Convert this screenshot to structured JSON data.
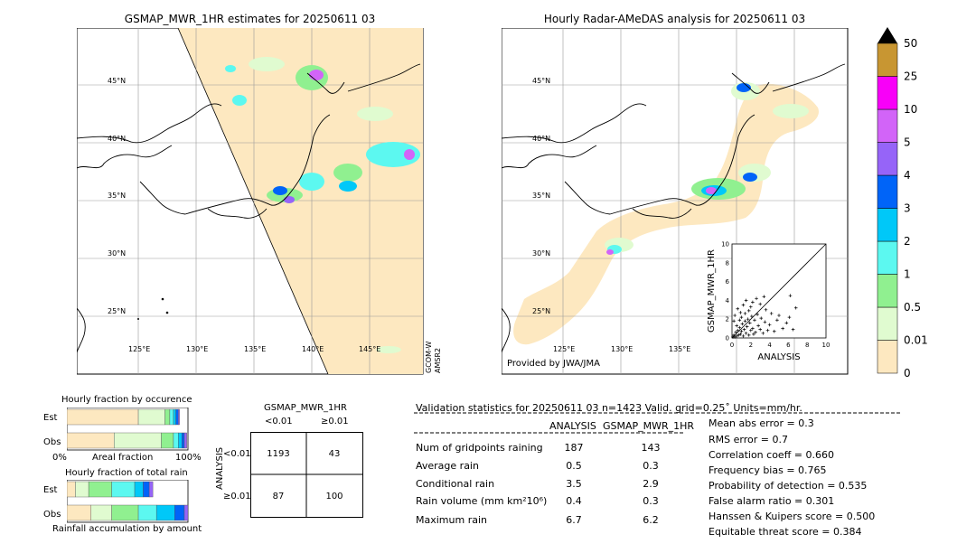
{
  "map_left": {
    "title": "GSMAP_MWR_1HR estimates for 20250611 03",
    "lat_labels": [
      "45°N",
      "40°N",
      "35°N",
      "30°N",
      "25°N"
    ],
    "lon_labels": [
      "125°E",
      "130°E",
      "135°E",
      "140°E",
      "145°E"
    ],
    "side_label_1": "GCOM-W",
    "side_label_2": "AMSR2"
  },
  "map_right": {
    "title": "Hourly Radar-AMeDAS analysis for 20250611 03",
    "lat_labels": [
      "45°N",
      "40°N",
      "35°N",
      "30°N",
      "25°N"
    ],
    "lon_labels": [
      "125°E",
      "130°E",
      "135°E"
    ],
    "provider": "Provided by JWA/JMA"
  },
  "colorbar": {
    "levels": [
      "0",
      "0.01",
      "0.5",
      "1",
      "2",
      "3",
      "4",
      "5",
      "10",
      "25",
      "50"
    ],
    "colors": [
      "#fde8c0",
      "#e0fbd0",
      "#90f090",
      "#5cf8f0",
      "#00c8f8",
      "#0064f8",
      "#9664f8",
      "#d264f8",
      "#f800f8",
      "#c89632"
    ]
  },
  "scatter": {
    "xlabel": "ANALYSIS",
    "ylabel": "GSMAP_MWR_1HR",
    "ticks": [
      "0",
      "2",
      "4",
      "6",
      "8",
      "10"
    ],
    "ytick_top": "10"
  },
  "chart_data": {
    "type": "scatter",
    "xlabel": "ANALYSIS",
    "ylabel": "GSMAP_MWR_1HR",
    "xlim": [
      0,
      10
    ],
    "ylim": [
      0,
      10
    ],
    "points": [
      [
        0.1,
        0.1
      ],
      [
        0.2,
        0.3
      ],
      [
        0.3,
        0.1
      ],
      [
        0.4,
        0.6
      ],
      [
        0.5,
        0.2
      ],
      [
        0.6,
        0.8
      ],
      [
        0.7,
        0.3
      ],
      [
        0.8,
        1.1
      ],
      [
        0.9,
        0.4
      ],
      [
        1.0,
        0.7
      ],
      [
        1.1,
        1.5
      ],
      [
        1.2,
        0.2
      ],
      [
        1.3,
        0.9
      ],
      [
        1.4,
        1.8
      ],
      [
        1.5,
        0.5
      ],
      [
        1.6,
        1.2
      ],
      [
        1.7,
        2.0
      ],
      [
        1.8,
        0.3
      ],
      [
        1.9,
        1.6
      ],
      [
        2.0,
        0.8
      ],
      [
        2.1,
        2.3
      ],
      [
        2.2,
        1.0
      ],
      [
        2.3,
        0.4
      ],
      [
        2.4,
        1.9
      ],
      [
        2.5,
        0.6
      ],
      [
        2.7,
        2.5
      ],
      [
        2.8,
        1.3
      ],
      [
        3.0,
        0.9
      ],
      [
        3.1,
        2.1
      ],
      [
        3.3,
        0.5
      ],
      [
        3.5,
        1.7
      ],
      [
        3.6,
        3.0
      ],
      [
        3.8,
        0.8
      ],
      [
        4.0,
        1.4
      ],
      [
        4.2,
        2.6
      ],
      [
        4.5,
        0.7
      ],
      [
        4.8,
        1.9
      ],
      [
        5.0,
        2.4
      ],
      [
        5.4,
        1.0
      ],
      [
        5.8,
        1.6
      ],
      [
        6.1,
        2.2
      ],
      [
        6.5,
        0.9
      ],
      [
        0.3,
        2.4
      ],
      [
        0.6,
        3.1
      ],
      [
        0.9,
        2.7
      ],
      [
        1.2,
        3.5
      ],
      [
        1.5,
        4.0
      ],
      [
        1.8,
        2.9
      ],
      [
        2.2,
        3.8
      ],
      [
        2.6,
        4.2
      ],
      [
        3.0,
        3.6
      ],
      [
        3.4,
        4.4
      ],
      [
        0.2,
        1.8
      ],
      [
        0.5,
        1.3
      ],
      [
        1.0,
        2.2
      ],
      [
        6.2,
        4.5
      ],
      [
        6.8,
        3.2
      ],
      [
        2.0,
        3.3
      ],
      [
        1.4,
        2.6
      ],
      [
        0.8,
        1.9
      ]
    ]
  },
  "occurrence_chart": {
    "title": "Hourly fraction by occurence",
    "rows": [
      "Est",
      "Obs"
    ],
    "axis_left": "0%",
    "axis_mid": "Areal fraction",
    "axis_right": "100%",
    "est_fractions": [
      0.59,
      0.22,
      0.04,
      0.03,
      0.02,
      0.02,
      0.01
    ],
    "obs_fractions": [
      0.39,
      0.39,
      0.1,
      0.04,
      0.03,
      0.02,
      0.02
    ]
  },
  "total_chart": {
    "title": "Hourly fraction of total rain",
    "rows": [
      "Est",
      "Obs"
    ],
    "axis_label": "Rainfall accumulation by amount",
    "est_fractions": [
      0.07,
      0.11,
      0.19,
      0.19,
      0.07,
      0.05,
      0.03
    ],
    "obs_fractions": [
      0.2,
      0.17,
      0.22,
      0.15,
      0.15,
      0.08,
      0.03
    ]
  },
  "contingency": {
    "title": "GSMAP_MWR_1HR",
    "col_headers": [
      "<0.01",
      "≥0.01"
    ],
    "row_headers": [
      "<0.01",
      "≥0.01"
    ],
    "side_label": "ANALYSIS",
    "cells": [
      "1193",
      "43",
      "87",
      "100"
    ]
  },
  "validation": {
    "header": "Validation statistics for 20250611 03  n=1423 Valid. grid=0.25˚ Units=mm/hr.",
    "col_analysis": "ANALYSIS",
    "col_gsmap": "GSMAP_MWR_1HR",
    "rows": [
      {
        "label": "Num of gridpoints raining",
        "analysis": "187",
        "gsmap": "143"
      },
      {
        "label": "Average rain",
        "analysis": "0.5",
        "gsmap": "0.3"
      },
      {
        "label": "Conditional rain",
        "analysis": "3.5",
        "gsmap": "2.9"
      },
      {
        "label": "Rain volume (mm km²10⁶)",
        "analysis": "0.4",
        "gsmap": "0.3"
      },
      {
        "label": "Maximum rain",
        "analysis": "6.7",
        "gsmap": "6.2"
      }
    ],
    "scores": [
      "Mean abs error =    0.3",
      "RMS error =    0.7",
      "Correlation coeff =  0.660",
      "Frequency bias =  0.765",
      "Probability of detection =  0.535",
      "False alarm ratio =  0.301",
      "Hanssen & Kuipers score =  0.500",
      "Equitable threat score =  0.384"
    ]
  }
}
